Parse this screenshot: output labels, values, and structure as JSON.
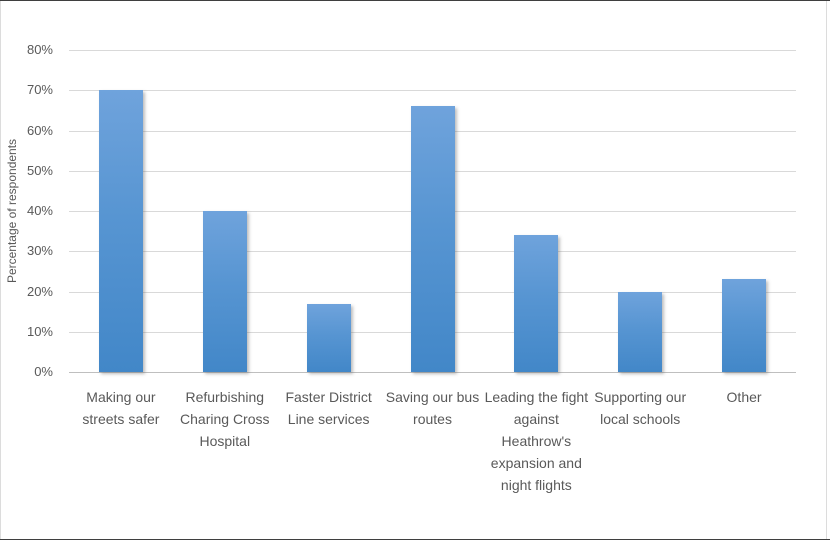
{
  "chart_data": {
    "type": "bar",
    "categories": [
      "Making our streets safer",
      "Refurbishing Charing Cross Hospital",
      "Faster District Line services",
      "Saving our bus routes",
      "Leading the fight against Heathrow's expansion and night flights",
      "Supporting our local schools",
      "Other"
    ],
    "values": [
      70,
      40,
      17,
      66,
      34,
      20,
      23
    ],
    "title": "",
    "xlabel": "",
    "ylabel": "Percentage of respondents",
    "ylim": [
      0,
      80
    ],
    "ytick_step": 10,
    "ytick_suffix": "%",
    "grid": true,
    "legend": false
  },
  "colors": {
    "bar_gradient_top": "#6fa3dc",
    "bar_gradient_bottom": "#4287c8",
    "gridline": "#d9d9d9",
    "axis_line": "#bfbfbf",
    "text": "#595959",
    "frame": "#dcdcdc"
  }
}
